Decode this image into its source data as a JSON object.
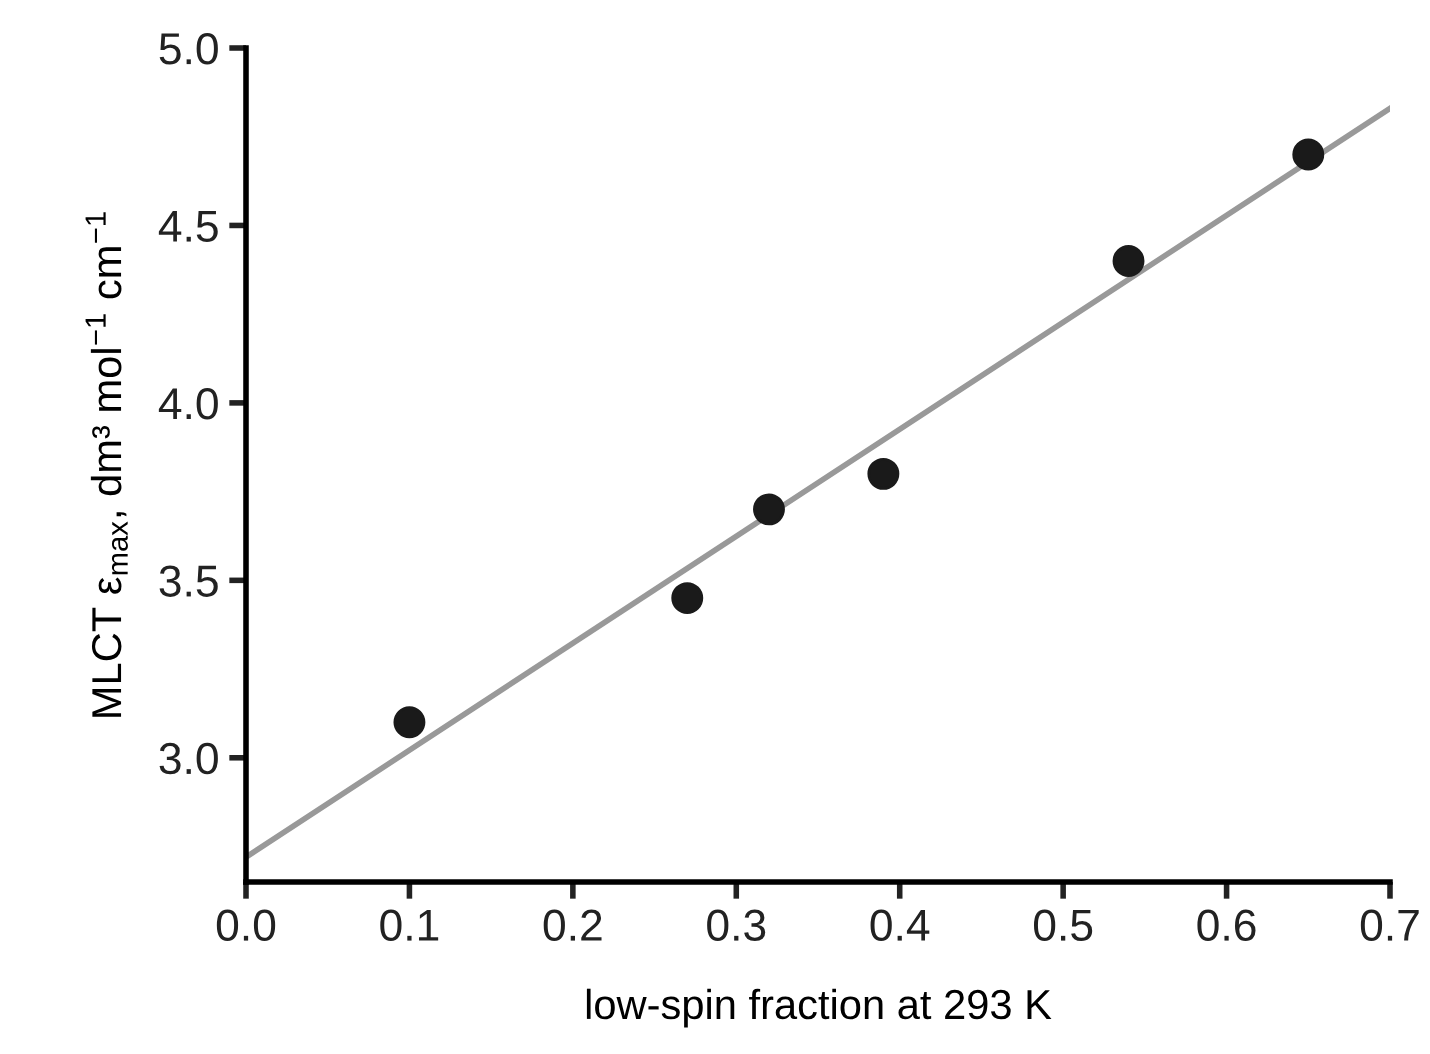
{
  "chart_data": {
    "type": "scatter",
    "xlabel": "low-spin fraction at 293 K",
    "ylabel": "MLCT ε$_{max}$, dm³ mol$^{−1}$ cm$^{−1}$",
    "series": [
      {
        "color": "#1a1a1a",
        "marker": "circle",
        "x": [
          0.1,
          0.27,
          0.32,
          0.39,
          0.54,
          0.65
        ],
        "values": [
          3.1,
          3.45,
          3.7,
          3.8,
          4.4,
          4.7
        ]
      },
      {
        "type": "line",
        "color": "#999999",
        "marker": "none",
        "line_style": "solid",
        "x": [
          0.0,
          0.7
        ],
        "values": [
          2.72,
          4.83
        ]
      }
    ],
    "xlim": [
      0,
      0.7
    ],
    "ylim": [
      2.65,
      5.0
    ],
    "xticks": [
      {
        "value": 0,
        "label": "0.0"
      },
      0.1,
      0.2,
      0.3,
      0.4,
      0.5,
      0.6,
      0.7
    ],
    "yticks": [
      {
        "value": 3,
        "label": "3.0"
      },
      3.5,
      {
        "value": 4,
        "label": "4.0"
      },
      4.5,
      {
        "value": 5,
        "label": "5.0"
      }
    ],
    "grid": false,
    "legend": false
  }
}
